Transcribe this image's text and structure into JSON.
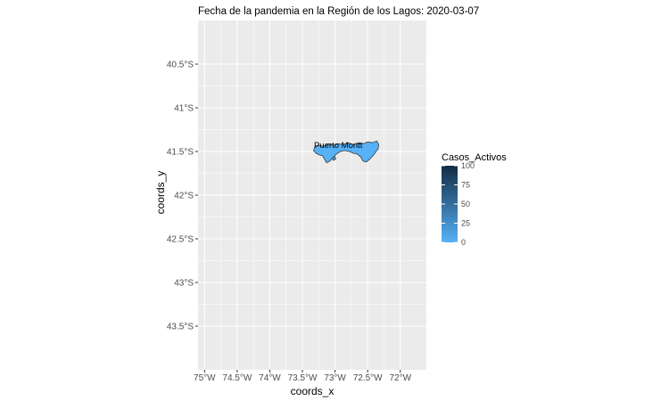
{
  "title": "Fecha de la pandemia en la Región de los Lagos: 2020-03-07",
  "x_axis": {
    "label": "coords_x",
    "range": [
      -75.1,
      -71.6
    ],
    "ticks": [
      {
        "value": -75.0,
        "label": "75°W"
      },
      {
        "value": -74.5,
        "label": "74.5°W"
      },
      {
        "value": -74.0,
        "label": "74°W"
      },
      {
        "value": -73.5,
        "label": "73.5°W"
      },
      {
        "value": -73.0,
        "label": "73°W"
      },
      {
        "value": -72.5,
        "label": "72.5°W"
      },
      {
        "value": -72.0,
        "label": "72°W"
      }
    ]
  },
  "y_axis": {
    "label": "coords_y",
    "range": [
      -44.0,
      -40.0
    ],
    "ticks": [
      {
        "value": -40.5,
        "label": "40.5°S"
      },
      {
        "value": -41.0,
        "label": "41°S"
      },
      {
        "value": -41.5,
        "label": "41.5°S"
      },
      {
        "value": -42.0,
        "label": "42°S"
      },
      {
        "value": -42.5,
        "label": "42.5°S"
      },
      {
        "value": -43.0,
        "label": "43°S"
      },
      {
        "value": -43.5,
        "label": "43.5°S"
      }
    ]
  },
  "legend": {
    "title": "Casos_Activos",
    "min": 0,
    "max": 100,
    "ticks": [
      {
        "value": 100,
        "label": "100"
      },
      {
        "value": 75,
        "label": "75"
      },
      {
        "value": 50,
        "label": "50"
      },
      {
        "value": 25,
        "label": "25"
      },
      {
        "value": 0,
        "label": "0"
      }
    ],
    "color_low": "#56B1F7",
    "color_high": "#132B43",
    "placement": "right"
  },
  "regions": [
    {
      "label": "Puerto Montt",
      "casos_activos": 0,
      "fill": "#56B1F7",
      "label_lon": -72.95,
      "label_lat": -41.42
    }
  ],
  "style": {
    "panel_background": "#EBEBEB",
    "grid_color": "#FFFFFF",
    "border_color": "#3a3a3a"
  }
}
